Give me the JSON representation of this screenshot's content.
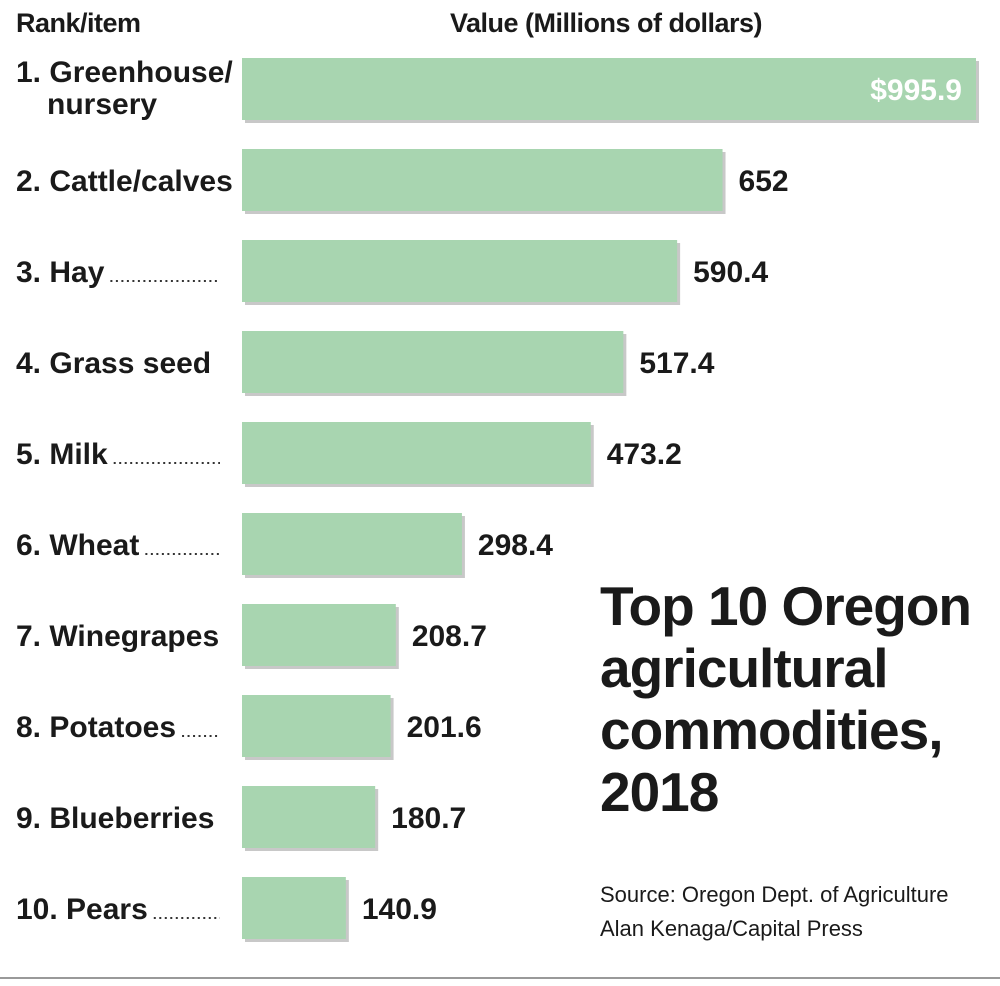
{
  "header": {
    "left": "Rank/item",
    "right": "Value (Millions of dollars)"
  },
  "title_lines": [
    "Top 10 Oregon",
    "agricultural",
    "commodities,",
    "2018"
  ],
  "source_lines": [
    "Source: Oregon Dept. of Agriculture",
    "Alan Kenaga/Capital Press"
  ],
  "colors": {
    "bar": "#a8d5b0",
    "bar_shadow": "#c8c8c8",
    "text": "#1a1a1a",
    "inside_label": "#ffffff"
  },
  "chart_data": {
    "type": "bar",
    "orientation": "horizontal",
    "title": "Top 10 Oregon agricultural commodities, 2018",
    "xlabel": "Value (Millions of dollars)",
    "ylabel": "Rank/item",
    "categories": [
      [
        "1. Greenhouse/",
        "nursery"
      ],
      [
        "2. Cattle/calves"
      ],
      [
        "3. Hay"
      ],
      [
        "4. Grass seed"
      ],
      [
        "5. Milk"
      ],
      [
        "6. Wheat"
      ],
      [
        "7. Winegrapes"
      ],
      [
        "8. Potatoes"
      ],
      [
        "9. Blueberries"
      ],
      [
        "10. Pears"
      ]
    ],
    "values": [
      995.9,
      652,
      590.4,
      517.4,
      473.2,
      298.4,
      208.7,
      201.6,
      180.7,
      140.9
    ],
    "value_labels": [
      "$995.9",
      "652",
      "590.4",
      "517.4",
      "473.2",
      "298.4",
      "208.7",
      "201.6",
      "180.7",
      "140.9"
    ],
    "xlim": [
      0,
      995.9
    ],
    "grid": false,
    "legend": "none"
  }
}
